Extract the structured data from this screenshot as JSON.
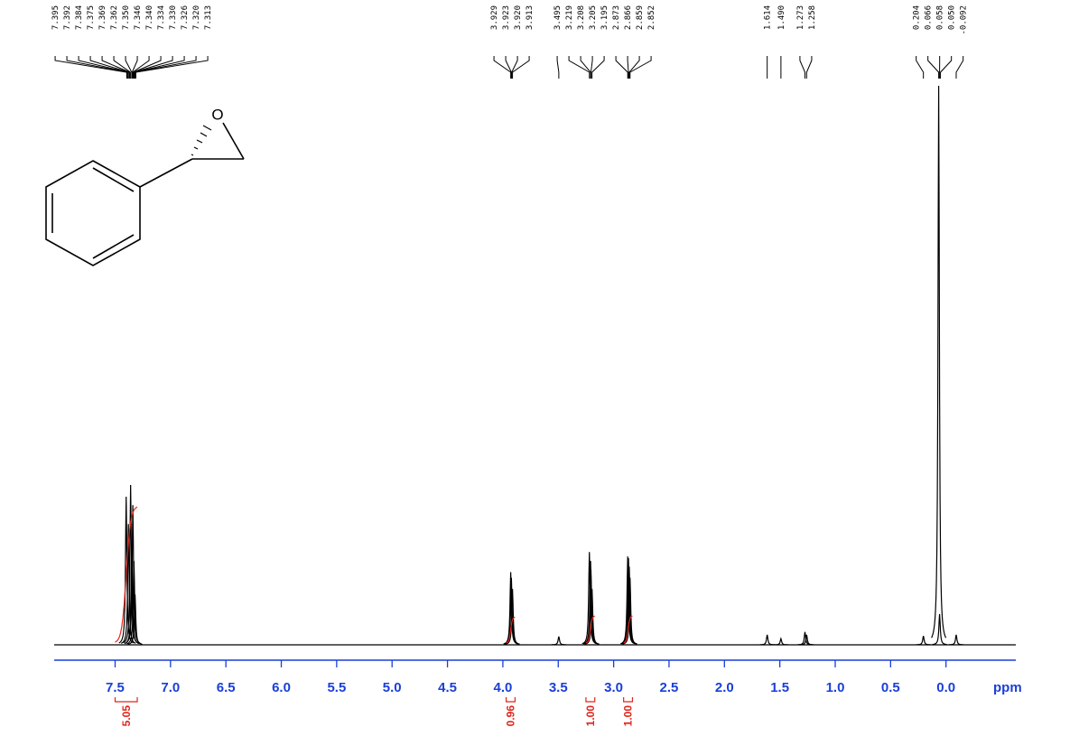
{
  "chart_data": {
    "type": "nmr",
    "xlim": [
      8.05,
      -0.63
    ],
    "xticks": [
      7.5,
      {
        "value": 7,
        "label": "7.0"
      },
      6.5,
      {
        "value": 6,
        "label": "6.0"
      },
      5.5,
      {
        "value": 5,
        "label": "5.0"
      },
      4.5,
      {
        "value": 4,
        "label": "4.0"
      },
      3.5,
      {
        "value": 3,
        "label": "3.0"
      },
      2.5,
      {
        "value": 2,
        "label": "2.0"
      },
      1.5,
      {
        "value": 1,
        "label": "1.0"
      },
      0.5,
      {
        "value": 0,
        "label": "0.0"
      }
    ],
    "xlabel": "ppm",
    "ylim": [
      0,
      100
    ],
    "peak_labels": [
      7.395,
      7.392,
      7.384,
      7.375,
      7.369,
      7.362,
      {
        "value": 7.35,
        "label": "7.350"
      },
      7.346,
      {
        "value": 7.34,
        "label": "7.340"
      },
      7.334,
      {
        "value": 7.33,
        "label": "7.330"
      },
      7.326,
      {
        "value": 7.32,
        "label": "7.320"
      },
      7.313,
      3.929,
      3.923,
      {
        "value": 3.92,
        "label": "3.920"
      },
      3.913,
      3.495,
      3.219,
      3.208,
      3.205,
      3.195,
      2.873,
      2.866,
      2.859,
      2.852,
      1.614,
      {
        "value": 1.49,
        "label": "1.490"
      },
      1.273,
      1.258,
      0.204,
      0.066,
      0.058,
      {
        "value": 0.05,
        "label": "0.050"
      },
      -0.092
    ],
    "peaks": {
      "ppm": [
        7.4,
        7.38,
        7.36,
        7.35,
        7.34,
        7.33,
        7.32,
        3.929,
        3.923,
        3.913,
        3.219,
        3.208,
        3.205,
        3.195,
        2.873,
        2.866,
        2.859,
        2.852,
        3.495,
        1.614,
        1.49,
        1.273,
        1.258,
        0.204,
        0.066,
        0.058,
        -0.092
      ],
      "height": [
        26.5,
        21.6,
        28.6,
        18,
        25,
        15,
        9,
        13,
        12,
        10,
        16.6,
        15,
        13.5,
        10,
        15.8,
        15.5,
        14,
        12,
        1.5,
        1.8,
        1.1,
        2.3,
        1.8,
        1.6,
        100,
        5.5,
        1.8
      ]
    },
    "integrals": [
      {
        "range": [
          7.5,
          7.3
        ],
        "value": 5.05
      },
      {
        "range": [
          3.97,
          3.89
        ],
        "value": 0.96
      },
      {
        "range": [
          3.25,
          3.17
        ],
        "value": {
          "value": 1,
          "label": "1.00"
        }
      },
      {
        "range": [
          2.91,
          2.83
        ],
        "value": {
          "value": 1,
          "label": "1.00"
        }
      }
    ]
  },
  "structure": {
    "atoms": [
      "O"
    ]
  }
}
